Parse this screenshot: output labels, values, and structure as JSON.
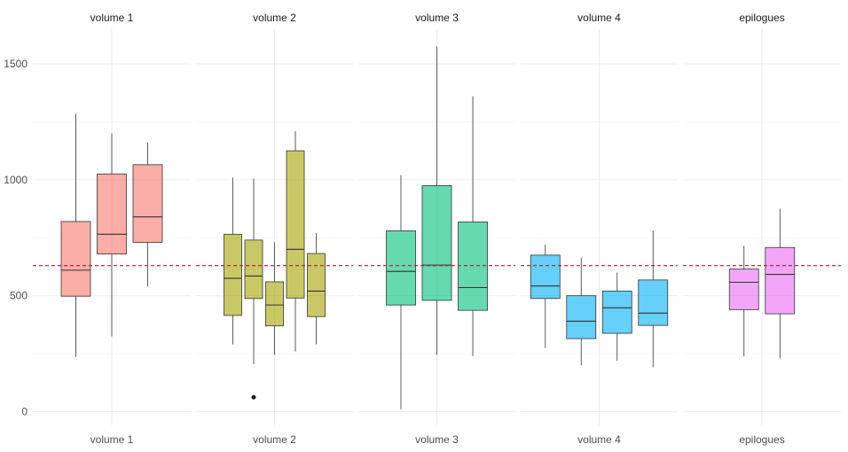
{
  "chart_data": {
    "type": "boxplot",
    "title": "",
    "xlabel": "",
    "ylabel": "",
    "ylim": [
      -50,
      1650
    ],
    "yticks": [
      0,
      500,
      1000,
      1500
    ],
    "reference_line": {
      "y": 630,
      "style": "dashed",
      "color": "#b2182b"
    },
    "facets": [
      {
        "name": "volume 1",
        "color": "#F8766D",
        "boxes": [
          {
            "min": 235,
            "q1": 498,
            "median": 610,
            "q3": 820,
            "max": 1285,
            "outliers": []
          },
          {
            "min": 325,
            "q1": 680,
            "median": 765,
            "q3": 1025,
            "max": 1200,
            "outliers": []
          },
          {
            "min": 540,
            "q1": 730,
            "median": 840,
            "q3": 1065,
            "max": 1160,
            "outliers": []
          }
        ]
      },
      {
        "name": "volume 2",
        "color": "#A3A500",
        "boxes": [
          {
            "min": 290,
            "q1": 415,
            "median": 575,
            "q3": 765,
            "max": 1010,
            "outliers": []
          },
          {
            "min": 205,
            "q1": 488,
            "median": 585,
            "q3": 740,
            "max": 1005,
            "outliers": [
              62
            ]
          },
          {
            "min": 245,
            "q1": 370,
            "median": 460,
            "q3": 560,
            "max": 730,
            "outliers": []
          },
          {
            "min": 260,
            "q1": 490,
            "median": 700,
            "q3": 1125,
            "max": 1210,
            "outliers": []
          },
          {
            "min": 290,
            "q1": 410,
            "median": 520,
            "q3": 682,
            "max": 770,
            "outliers": []
          }
        ]
      },
      {
        "name": "volume 3",
        "color": "#00BF7D",
        "boxes": [
          {
            "min": 10,
            "q1": 460,
            "median": 605,
            "q3": 780,
            "max": 1020,
            "outliers": []
          },
          {
            "min": 245,
            "q1": 480,
            "median": 632,
            "q3": 975,
            "max": 1575,
            "outliers": []
          },
          {
            "min": 240,
            "q1": 437,
            "median": 535,
            "q3": 818,
            "max": 1360,
            "outliers": []
          }
        ]
      },
      {
        "name": "volume 4",
        "color": "#00B0F6",
        "boxes": [
          {
            "min": 275,
            "q1": 488,
            "median": 542,
            "q3": 675,
            "max": 720,
            "outliers": []
          },
          {
            "min": 200,
            "q1": 315,
            "median": 390,
            "q3": 500,
            "max": 665,
            "outliers": []
          },
          {
            "min": 220,
            "q1": 338,
            "median": 448,
            "q3": 520,
            "max": 600,
            "outliers": []
          },
          {
            "min": 192,
            "q1": 372,
            "median": 425,
            "q3": 568,
            "max": 780,
            "outliers": []
          }
        ]
      },
      {
        "name": "epilogues",
        "color": "#E76BF3",
        "boxes": [
          {
            "min": 238,
            "q1": 440,
            "median": 558,
            "q3": 615,
            "max": 715,
            "outliers": []
          },
          {
            "min": 230,
            "q1": 422,
            "median": 592,
            "q3": 708,
            "max": 875,
            "outliers": []
          }
        ]
      }
    ]
  }
}
